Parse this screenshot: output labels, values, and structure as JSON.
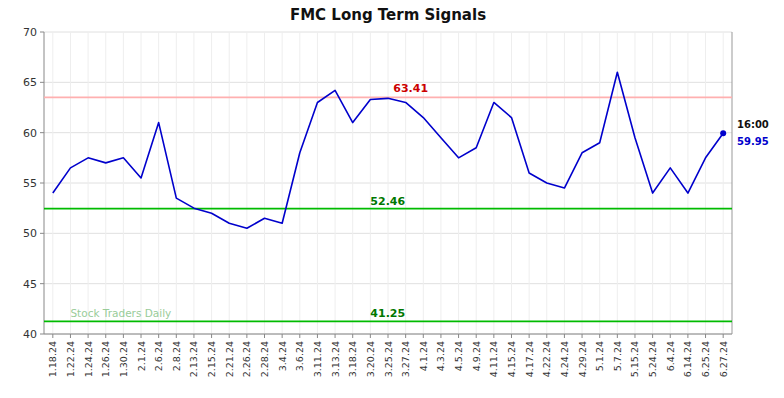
{
  "chart_data": {
    "type": "line",
    "title": "FMC Long Term Signals",
    "categories": [
      "1.18.24",
      "1.22.24",
      "1.24.24",
      "1.26.24",
      "1.30.24",
      "2.1.24",
      "2.6.24",
      "2.8.24",
      "2.13.24",
      "2.15.24",
      "2.21.24",
      "2.26.24",
      "2.28.24",
      "3.4.24",
      "3.6.24",
      "3.11.24",
      "3.13.24",
      "3.18.24",
      "3.20.24",
      "3.25.24",
      "3.27.24",
      "4.1.24",
      "4.3.24",
      "4.5.24",
      "4.9.24",
      "4.11.24",
      "4.15.24",
      "4.17.24",
      "4.22.24",
      "4.24.24",
      "4.29.24",
      "5.1.24",
      "5.7.24",
      "5.15.24",
      "5.24.24",
      "6.4.24",
      "6.14.24",
      "6.25.24",
      "6.27.24"
    ],
    "values": [
      54.0,
      56.5,
      57.5,
      57.0,
      57.5,
      55.5,
      61.0,
      53.5,
      52.5,
      52.0,
      51.0,
      50.5,
      51.5,
      51.0,
      58.0,
      63.0,
      64.2,
      61.0,
      63.3,
      63.41,
      63.0,
      61.5,
      59.5,
      57.5,
      58.5,
      63.0,
      61.5,
      56.0,
      55.0,
      54.5,
      58.0,
      59.0,
      66.0,
      59.5,
      54.0,
      56.5,
      54.0,
      57.5,
      59.95
    ],
    "color": "#0000cc",
    "ylim": [
      40,
      70
    ],
    "yticks": [
      40,
      45,
      50,
      55,
      60,
      65,
      70
    ],
    "grid": true,
    "reference_lines": [
      {
        "value": 63.5,
        "color": "#ffb0b0"
      },
      {
        "value": 52.46,
        "color": "#00bb00",
        "label": "52.46",
        "label_x": "3.20.24",
        "label_color": "#007700"
      },
      {
        "value": 41.25,
        "color": "#00bb00",
        "label": "41.25",
        "label_x": "3.20.24",
        "label_color": "#007700"
      }
    ],
    "annotations": [
      {
        "text": "63.41",
        "value": 63.41,
        "x": "3.25.24",
        "color": "#cc0000"
      }
    ],
    "watermark": {
      "text": "Stock Traders Daily",
      "color": "#99cc99"
    },
    "end_label": {
      "time": "16:00",
      "value": 59.95,
      "label": "59.95",
      "color": "#0000cc"
    }
  }
}
